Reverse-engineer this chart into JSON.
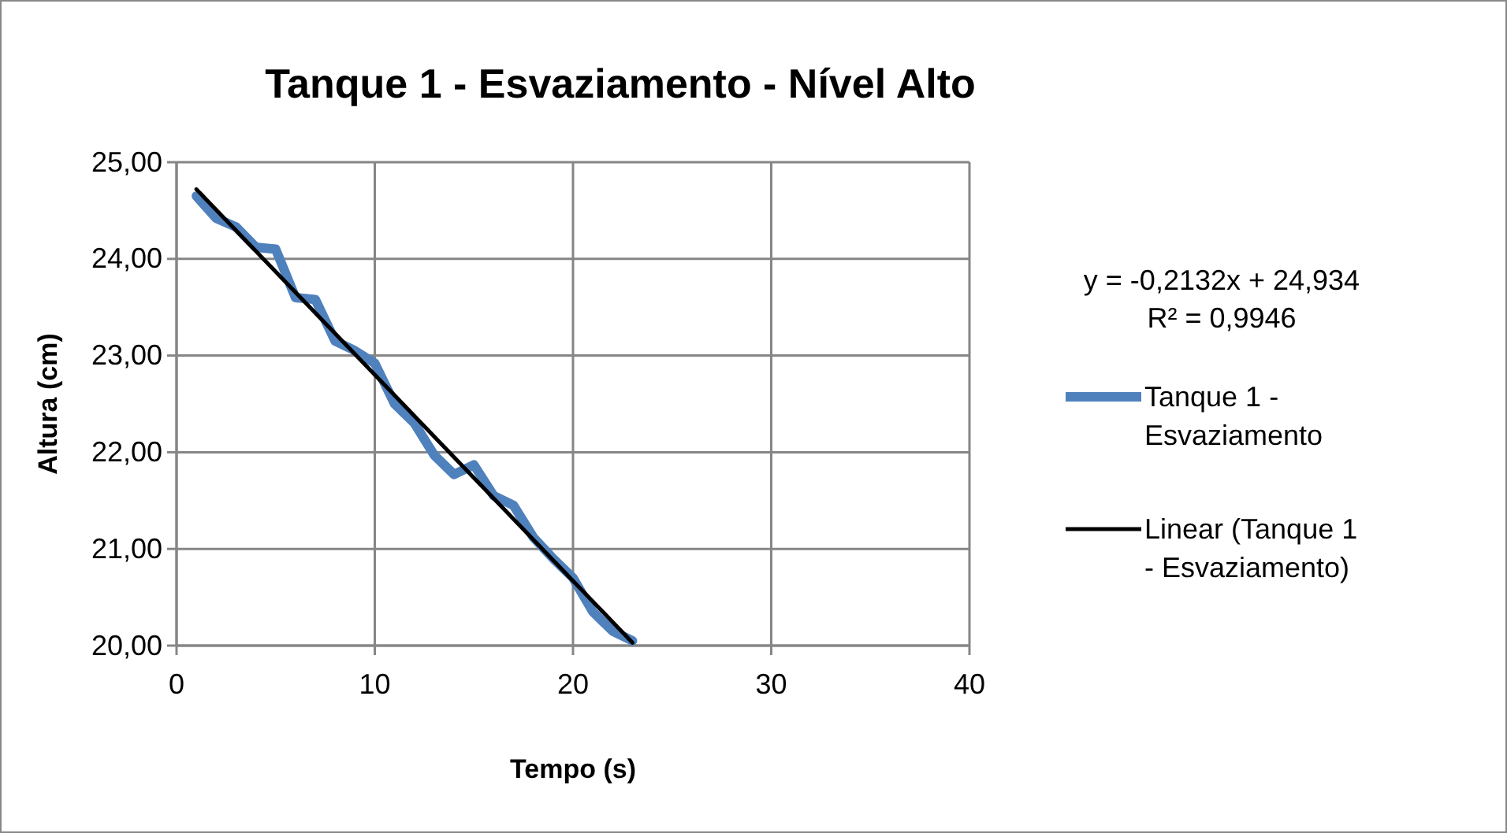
{
  "chart_data": {
    "type": "line",
    "title": "Tanque 1 - Esvaziamento - Nível Alto",
    "xlabel": "Tempo (s)",
    "ylabel": "Altura (cm)",
    "xlim": [
      0,
      40
    ],
    "xticks": [
      0,
      10,
      20,
      30,
      40
    ],
    "ylim": [
      20,
      25
    ],
    "yticks": [
      {
        "value": 20,
        "label": "20,00"
      },
      {
        "value": 21,
        "label": "21,00"
      },
      {
        "value": 22,
        "label": "22,00"
      },
      {
        "value": 23,
        "label": "23,00"
      },
      {
        "value": 24,
        "label": "24,00"
      },
      {
        "value": 25,
        "label": "25,00"
      }
    ],
    "grid": true,
    "legend": "right",
    "marker": "none",
    "annotations": [
      "y = -0,2132x + 24,934",
      "R² = 0,9946"
    ],
    "series": [
      {
        "name": "Tanque 1 - Esvaziamento",
        "color": "#4f81bd",
        "x": [
          1,
          2,
          3,
          4,
          5,
          6,
          7,
          8,
          9,
          10,
          11,
          12,
          13,
          14,
          15,
          16,
          17,
          18,
          19,
          20,
          21,
          22,
          23
        ],
        "values": [
          24.65,
          24.42,
          24.33,
          24.12,
          24.1,
          23.6,
          23.58,
          23.15,
          23.05,
          22.92,
          22.5,
          22.3,
          21.97,
          21.77,
          21.87,
          21.55,
          21.45,
          21.12,
          20.9,
          20.7,
          20.35,
          20.15,
          20.05
        ]
      },
      {
        "name": "Linear (Tanque 1 - Esvaziamento)",
        "color": "#000000",
        "x": [
          1,
          23
        ],
        "values": [
          24.72,
          20.03
        ]
      }
    ]
  }
}
